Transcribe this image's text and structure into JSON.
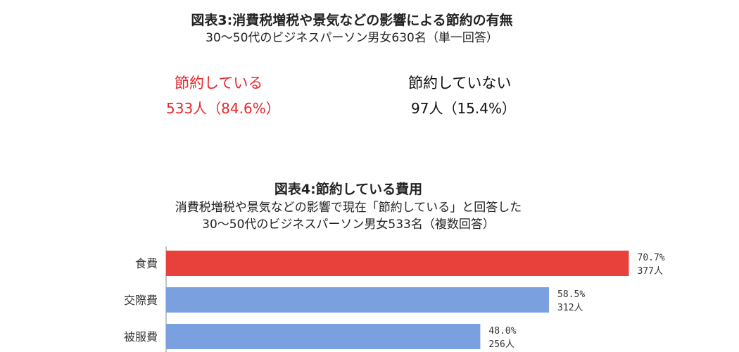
{
  "figure3": {
    "title": "図表3:消費税増税や景気などの影響による節約の有無",
    "subtitle": "30～50代のビジネスパーソン男女630名（単一回答）",
    "saving": {
      "label": "節約している",
      "value": "533人（84.6%）",
      "color": "#e8262a"
    },
    "not_saving": {
      "label": "節約していない",
      "value": "97人（15.4%）",
      "color": "#111111"
    }
  },
  "figure4": {
    "title": "図表4:節約している費用",
    "subtitle_line1": "消費税増税や景気などの影響で現在「節約している」と回答した",
    "subtitle_line2": "30～50代のビジネスパーソン男女533名（複数回答）"
  },
  "chart_data": {
    "type": "bar",
    "orientation": "horizontal",
    "categories": [
      "食費",
      "交際費",
      "被服費"
    ],
    "values": [
      70.7,
      58.5,
      48.0
    ],
    "percent_labels": [
      "70.7%",
      "58.5%",
      "48.0%"
    ],
    "count_labels": [
      "377人",
      "312人",
      "256人"
    ],
    "bar_colors": [
      "#e8403a",
      "#7aa0e0",
      "#7aa0e0"
    ],
    "xlim": [
      0,
      100
    ]
  }
}
